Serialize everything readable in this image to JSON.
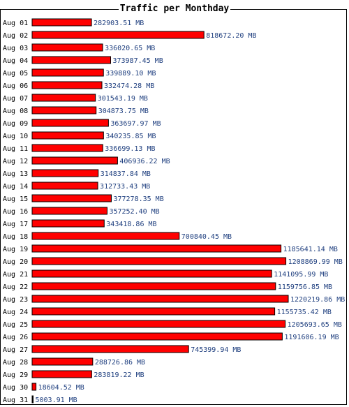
{
  "chart_data": {
    "type": "bar",
    "orientation": "horizontal",
    "title": "Traffic per Monthday",
    "xlabel": "",
    "ylabel": "",
    "unit": "MB",
    "xlim": [
      0,
      1220219.86
    ],
    "grid": false,
    "legend": "none",
    "bar_color": "#ff0000",
    "bar_border_color": "#000000",
    "label_color": "#1f3f7f",
    "categories": [
      "Aug 01",
      "Aug 02",
      "Aug 03",
      "Aug 04",
      "Aug 05",
      "Aug 06",
      "Aug 07",
      "Aug 08",
      "Aug 09",
      "Aug 10",
      "Aug 11",
      "Aug 12",
      "Aug 13",
      "Aug 14",
      "Aug 15",
      "Aug 16",
      "Aug 17",
      "Aug 18",
      "Aug 19",
      "Aug 20",
      "Aug 21",
      "Aug 22",
      "Aug 23",
      "Aug 24",
      "Aug 25",
      "Aug 26",
      "Aug 27",
      "Aug 28",
      "Aug 29",
      "Aug 30",
      "Aug 31"
    ],
    "values": [
      282903.51,
      818672.2,
      336020.65,
      373987.45,
      339889.1,
      332474.28,
      301543.19,
      304873.75,
      363697.97,
      340235.85,
      336699.13,
      406936.22,
      314837.84,
      312733.43,
      377278.35,
      357252.4,
      343418.86,
      700840.45,
      1185641.14,
      1208869.99,
      1141095.99,
      1159756.85,
      1220219.86,
      1155735.42,
      1205693.65,
      1191606.19,
      745399.94,
      288726.86,
      283819.22,
      18604.52,
      5003.91
    ],
    "value_labels": [
      "282903.51 MB",
      "818672.20 MB",
      "336020.65 MB",
      "373987.45 MB",
      "339889.10 MB",
      "332474.28 MB",
      "301543.19 MB",
      "304873.75 MB",
      "363697.97 MB",
      "340235.85 MB",
      "336699.13 MB",
      "406936.22 MB",
      "314837.84 MB",
      "312733.43 MB",
      "377278.35 MB",
      "357252.40 MB",
      "343418.86 MB",
      "700840.45 MB",
      "1185641.14 MB",
      "1208869.99 MB",
      "1141095.99 MB",
      "1159756.85 MB",
      "1220219.86 MB",
      "1155735.42 MB",
      "1205693.65 MB",
      "1191606.19 MB",
      "745399.94 MB",
      "288726.86 MB",
      "283819.22 MB",
      "18604.52 MB",
      "5003.91 MB"
    ]
  }
}
